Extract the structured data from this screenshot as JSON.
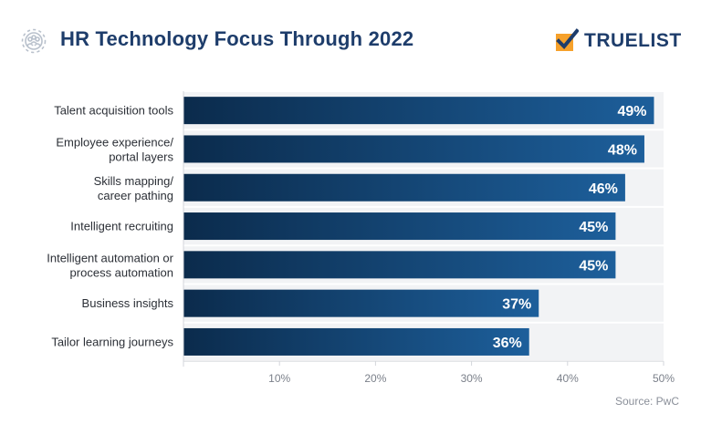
{
  "header": {
    "title": "HR Technology Focus Through 2022",
    "title_icon": "gear-people-icon",
    "brand_name": "TRUELIST",
    "brand_icon": "checkmark-box-icon"
  },
  "chart_data": {
    "type": "bar",
    "orientation": "horizontal",
    "title": "HR Technology Focus Through 2022",
    "categories": [
      "Talent acquisition tools",
      "Employee experience/ portal layers",
      "Skills mapping/ career pathing",
      "Intelligent recruiting",
      "Intelligent automation or process automation",
      "Business insights",
      "Tailor learning journeys"
    ],
    "category_lines": [
      [
        "Talent acquisition tools"
      ],
      [
        "Employee experience/",
        "portal layers"
      ],
      [
        "Skills mapping/",
        "career pathing"
      ],
      [
        "Intelligent recruiting"
      ],
      [
        "Intelligent automation or",
        "process automation"
      ],
      [
        "Business insights"
      ],
      [
        "Tailor learning journeys"
      ]
    ],
    "values": [
      49,
      48,
      46,
      45,
      45,
      37,
      36
    ],
    "value_labels": [
      "49%",
      "48%",
      "46%",
      "45%",
      "45%",
      "37%",
      "36%"
    ],
    "xlim": [
      0,
      50
    ],
    "xticks": [
      10,
      20,
      30,
      40,
      50
    ],
    "xtick_labels": [
      "10%",
      "20%",
      "30%",
      "40%",
      "50%"
    ],
    "xlabel": "",
    "ylabel": "",
    "grid": false
  },
  "footer": {
    "source": "Source: PwC"
  },
  "colors": {
    "title": "#1e3d6b",
    "bar_dark": "#0b2b4c",
    "bar_light": "#1d5f9b",
    "row_bg": "#f2f3f5",
    "axis": "#d3d6db",
    "tick_text": "#7b808a",
    "label_text": "#2b2f36",
    "brand_orange": "#f6a12b"
  }
}
